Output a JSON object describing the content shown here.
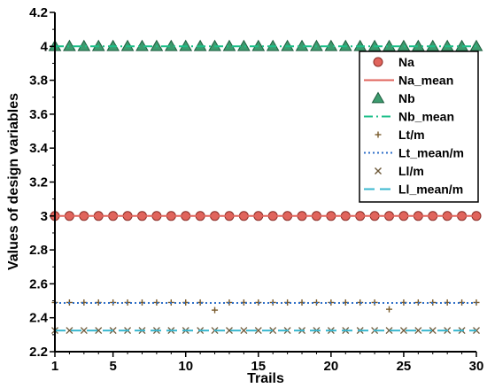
{
  "chart_data": {
    "type": "line",
    "title": "",
    "xlabel": "Trails",
    "ylabel": "Values of design variables",
    "xlim": [
      1,
      30
    ],
    "ylim": [
      2.2,
      4.2
    ],
    "xticks": [
      1,
      5,
      10,
      15,
      20,
      25,
      30
    ],
    "yticks": [
      2.2,
      2.4,
      2.6,
      2.8,
      3.0,
      3.2,
      3.4,
      3.6,
      3.8,
      4.0,
      4.2
    ],
    "ytick_labels": [
      "2.2",
      "2.4",
      "2.6",
      "2.8",
      "3",
      "3.2",
      "3.4",
      "3.6",
      "3.8",
      "4",
      "4.2"
    ],
    "grid": false,
    "legend_position": "top-right",
    "x": [
      1,
      2,
      3,
      4,
      5,
      6,
      7,
      8,
      9,
      10,
      11,
      12,
      13,
      14,
      15,
      16,
      17,
      18,
      19,
      20,
      21,
      22,
      23,
      24,
      25,
      26,
      27,
      28,
      29,
      30
    ],
    "series": [
      {
        "name": "Na",
        "kind": "marker",
        "marker": "circle",
        "color": "#e0645c",
        "values": [
          3,
          3,
          3,
          3,
          3,
          3,
          3,
          3,
          3,
          3,
          3,
          3,
          3,
          3,
          3,
          3,
          3,
          3,
          3,
          3,
          3,
          3,
          3,
          3,
          3,
          3,
          3,
          3,
          3,
          3
        ]
      },
      {
        "name": "Na_mean",
        "kind": "line",
        "dash": "solid",
        "color": "#e0645c",
        "value": 3.0
      },
      {
        "name": "Nb",
        "kind": "marker",
        "marker": "triangle",
        "color": "#3d9b6e",
        "values": [
          4,
          4,
          4,
          4,
          4,
          4,
          4,
          4,
          4,
          4,
          4,
          4,
          4,
          4,
          4,
          4,
          4,
          4,
          4,
          4,
          4,
          4,
          4,
          4,
          4,
          4,
          4,
          4,
          4,
          4
        ]
      },
      {
        "name": "Nb_mean",
        "kind": "line",
        "dash": "dashdot",
        "color": "#1ebf8a",
        "value": 4.0
      },
      {
        "name": "Lt/m",
        "kind": "marker",
        "marker": "plus",
        "color": "#7a5c2e",
        "values": [
          2.49,
          2.49,
          2.49,
          2.49,
          2.49,
          2.49,
          2.49,
          2.49,
          2.49,
          2.49,
          2.49,
          2.445,
          2.49,
          2.49,
          2.49,
          2.49,
          2.49,
          2.49,
          2.49,
          2.49,
          2.49,
          2.49,
          2.49,
          2.45,
          2.49,
          2.49,
          2.49,
          2.49,
          2.49,
          2.49
        ]
      },
      {
        "name": "Lt_mean/m",
        "kind": "line",
        "dash": "dotted",
        "color": "#2f6fc8",
        "value": 2.487
      },
      {
        "name": "Ll/m",
        "kind": "marker",
        "marker": "cross",
        "color": "#6e5a3a",
        "values": [
          2.325,
          2.325,
          2.325,
          2.325,
          2.325,
          2.325,
          2.325,
          2.325,
          2.325,
          2.325,
          2.325,
          2.325,
          2.325,
          2.325,
          2.325,
          2.325,
          2.325,
          2.325,
          2.325,
          2.325,
          2.325,
          2.325,
          2.325,
          2.325,
          2.325,
          2.325,
          2.325,
          2.325,
          2.325,
          2.325
        ]
      },
      {
        "name": "Ll_mean/m",
        "kind": "line",
        "dash": "dashed",
        "color": "#39b7cf",
        "value": 2.325
      }
    ]
  }
}
